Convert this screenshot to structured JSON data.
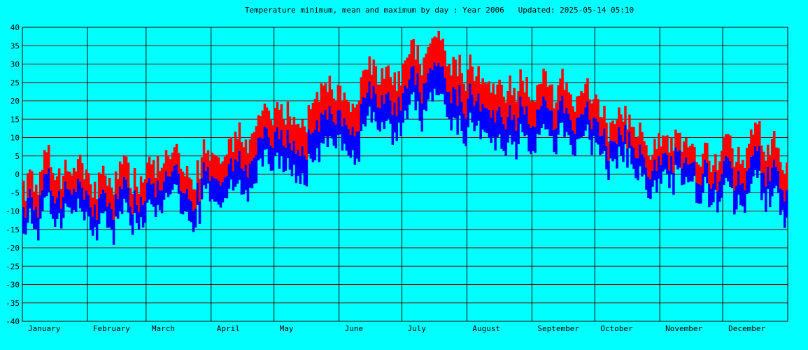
{
  "chart_data": {
    "type": "bar",
    "title": "Temperature minimum, mean and maximum by day : Year 2006   Updated: 2025-05-14 05:10",
    "ylim": [
      -40,
      40
    ],
    "yticks": [
      40,
      35,
      30,
      25,
      20,
      15,
      10,
      5,
      0,
      -5,
      -10,
      -15,
      -20,
      -25,
      -30,
      -35,
      -40
    ],
    "months": [
      "January",
      "February",
      "March",
      "April",
      "May",
      "June",
      "July",
      "August",
      "September",
      "October",
      "November",
      "December"
    ],
    "month_days": [
      31,
      28,
      31,
      30,
      31,
      30,
      31,
      31,
      30,
      31,
      30,
      31
    ],
    "series": [
      {
        "color": "#0000ff",
        "stat": "min-to-mean"
      },
      {
        "color": "#ff0000",
        "stat": "mean-to-max"
      }
    ],
    "grid": true,
    "mean_min_by_month": [
      -10,
      -11,
      -8,
      0,
      6,
      14,
      16,
      14,
      10,
      4,
      -1,
      -6
    ],
    "mean_max_by_month": [
      -1,
      -2,
      0,
      10,
      18,
      25,
      28,
      26,
      20,
      12,
      6,
      4
    ]
  },
  "colors": {
    "background": "#00ffff",
    "grid": "#800000",
    "axis": "#000000",
    "min_bar": "#0000ff",
    "max_bar": "#ff0000"
  }
}
